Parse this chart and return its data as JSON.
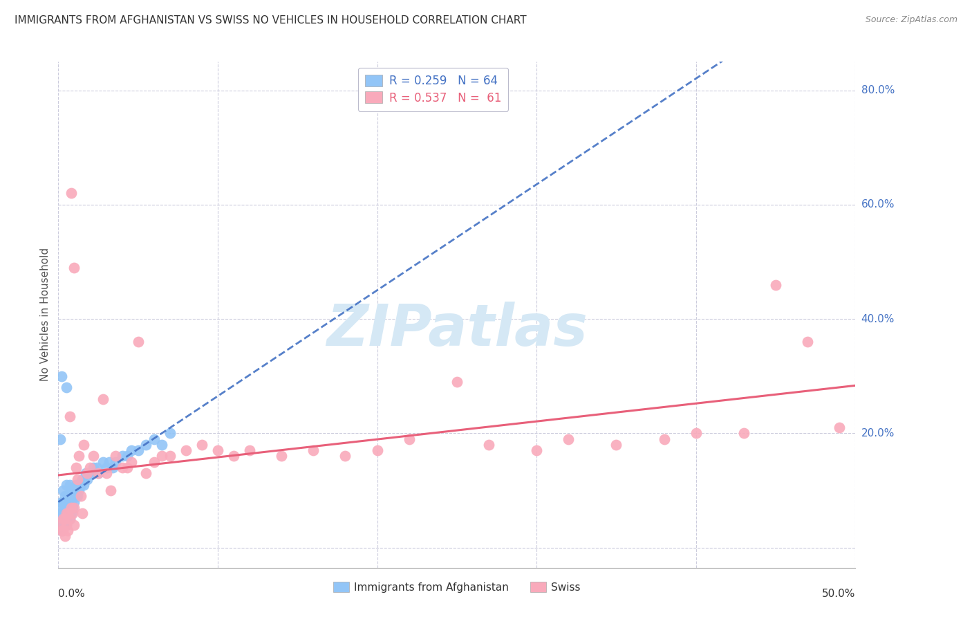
{
  "title": "IMMIGRANTS FROM AFGHANISTAN VS SWISS NO VEHICLES IN HOUSEHOLD CORRELATION CHART",
  "source": "Source: ZipAtlas.com",
  "ylabel": "No Vehicles in Household",
  "xmin": 0.0,
  "xmax": 0.5,
  "ymin": -0.035,
  "ymax": 0.85,
  "legend1_R": "0.259",
  "legend1_N": "64",
  "legend2_R": "0.537",
  "legend2_N": "61",
  "blue_color": "#92C5F7",
  "pink_color": "#F9AABB",
  "blue_line_color": "#4472C4",
  "pink_line_color": "#E8607A",
  "watermark_color": "#D5E8F5",
  "background_color": "#FFFFFF",
  "grid_color": "#CCCCDD",
  "blue_x": [
    0.001,
    0.001,
    0.002,
    0.002,
    0.002,
    0.002,
    0.003,
    0.003,
    0.003,
    0.003,
    0.003,
    0.004,
    0.004,
    0.004,
    0.004,
    0.005,
    0.005,
    0.005,
    0.005,
    0.006,
    0.006,
    0.006,
    0.007,
    0.007,
    0.007,
    0.007,
    0.008,
    0.008,
    0.008,
    0.009,
    0.009,
    0.01,
    0.01,
    0.011,
    0.011,
    0.012,
    0.012,
    0.013,
    0.014,
    0.015,
    0.016,
    0.017,
    0.018,
    0.019,
    0.02,
    0.022,
    0.024,
    0.025,
    0.028,
    0.03,
    0.032,
    0.034,
    0.036,
    0.04,
    0.043,
    0.046,
    0.05,
    0.055,
    0.06,
    0.065,
    0.07,
    0.001,
    0.002,
    0.005
  ],
  "blue_y": [
    0.04,
    0.06,
    0.03,
    0.05,
    0.07,
    0.08,
    0.04,
    0.05,
    0.06,
    0.08,
    0.1,
    0.04,
    0.06,
    0.07,
    0.09,
    0.04,
    0.06,
    0.08,
    0.11,
    0.05,
    0.07,
    0.09,
    0.05,
    0.07,
    0.09,
    0.11,
    0.06,
    0.08,
    0.1,
    0.07,
    0.09,
    0.08,
    0.1,
    0.09,
    0.11,
    0.09,
    0.11,
    0.1,
    0.11,
    0.12,
    0.11,
    0.13,
    0.12,
    0.13,
    0.13,
    0.14,
    0.14,
    0.13,
    0.15,
    0.14,
    0.15,
    0.14,
    0.15,
    0.16,
    0.16,
    0.17,
    0.17,
    0.18,
    0.19,
    0.18,
    0.2,
    0.19,
    0.3,
    0.28
  ],
  "pink_x": [
    0.001,
    0.002,
    0.003,
    0.003,
    0.004,
    0.004,
    0.005,
    0.005,
    0.006,
    0.006,
    0.007,
    0.007,
    0.008,
    0.009,
    0.01,
    0.01,
    0.011,
    0.012,
    0.013,
    0.014,
    0.015,
    0.016,
    0.018,
    0.02,
    0.022,
    0.025,
    0.028,
    0.03,
    0.033,
    0.036,
    0.04,
    0.043,
    0.046,
    0.05,
    0.055,
    0.06,
    0.065,
    0.07,
    0.08,
    0.09,
    0.1,
    0.11,
    0.12,
    0.14,
    0.16,
    0.18,
    0.2,
    0.22,
    0.25,
    0.27,
    0.3,
    0.32,
    0.35,
    0.38,
    0.4,
    0.43,
    0.45,
    0.47,
    0.49,
    0.01,
    0.008
  ],
  "pink_y": [
    0.04,
    0.03,
    0.03,
    0.05,
    0.02,
    0.05,
    0.04,
    0.06,
    0.03,
    0.06,
    0.05,
    0.23,
    0.07,
    0.06,
    0.04,
    0.07,
    0.14,
    0.12,
    0.16,
    0.09,
    0.06,
    0.18,
    0.13,
    0.14,
    0.16,
    0.13,
    0.26,
    0.13,
    0.1,
    0.16,
    0.14,
    0.14,
    0.15,
    0.36,
    0.13,
    0.15,
    0.16,
    0.16,
    0.17,
    0.18,
    0.17,
    0.16,
    0.17,
    0.16,
    0.17,
    0.16,
    0.17,
    0.19,
    0.29,
    0.18,
    0.17,
    0.19,
    0.18,
    0.19,
    0.2,
    0.2,
    0.46,
    0.36,
    0.21,
    0.49,
    0.62
  ]
}
